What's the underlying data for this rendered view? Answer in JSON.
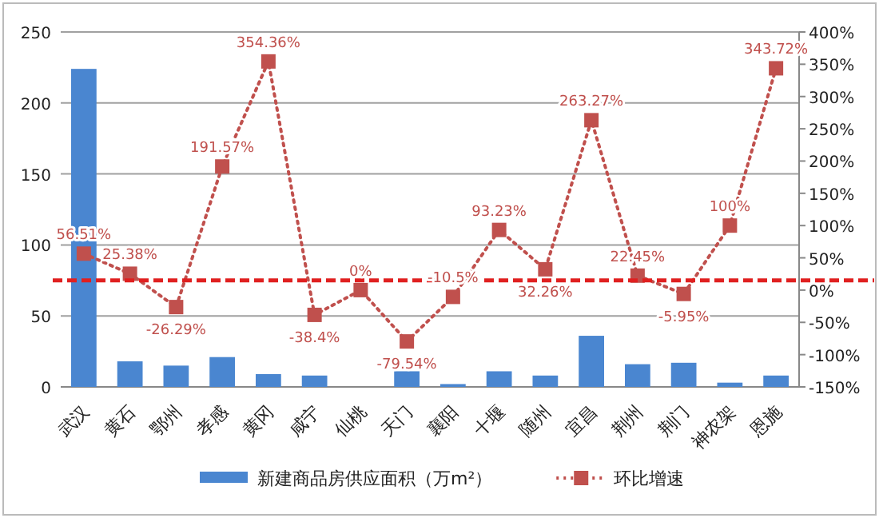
{
  "chart_data": {
    "type": "bar",
    "categories": [
      "武汉",
      "黄石",
      "鄂州",
      "孝感",
      "黄冈",
      "咸宁",
      "仙桃",
      "天门",
      "襄阳",
      "十堰",
      "随州",
      "宜昌",
      "荆州",
      "荆门",
      "神农架",
      "恩施"
    ],
    "series": [
      {
        "name": "新建商品房供应面积（万m²）",
        "color": "#4a86d0",
        "values": [
          224,
          18,
          15,
          21,
          9,
          8,
          0,
          11,
          2,
          11,
          8,
          36,
          16,
          17,
          3,
          8
        ]
      },
      {
        "name": "环比增速",
        "type": "line",
        "axis": "y2",
        "color": "#c0504d",
        "marker": "square",
        "line_style": "dotted",
        "values": [
          56.51,
          25.38,
          -26.29,
          191.57,
          354.36,
          -38.4,
          0,
          -79.54,
          -10.5,
          93.23,
          32.26,
          263.27,
          22.45,
          -5.95,
          100,
          343.72
        ],
        "value_labels": [
          "56.51%",
          "25.38%",
          "-26.29%",
          "191.57%",
          "354.36%",
          "-38.4%",
          "0%",
          "-79.54%",
          "-10.5%",
          "93.23%",
          "32.26%",
          "263.27%",
          "22.45%",
          "-5.95%",
          "100%",
          "343.72%"
        ]
      }
    ],
    "ylim": [
      0,
      250
    ],
    "yticks": [
      0,
      50,
      100,
      150,
      200,
      250
    ],
    "y2lim": [
      -150,
      400
    ],
    "y2ticks": [
      {
        "value": -150,
        "label": "-150%"
      },
      {
        "value": -100,
        "label": "-100%"
      },
      {
        "value": -50,
        "label": "-50%"
      },
      {
        "value": 0,
        "label": "0%"
      },
      {
        "value": 50,
        "label": "50%"
      },
      {
        "value": 100,
        "label": "100%"
      },
      {
        "value": 150,
        "label": "150%"
      },
      {
        "value": 200,
        "label": "200%"
      },
      {
        "value": 250,
        "label": "250%"
      },
      {
        "value": 300,
        "label": "300%"
      },
      {
        "value": 350,
        "label": "350%"
      },
      {
        "value": 400,
        "label": "400%"
      }
    ],
    "ref_lines": [
      {
        "axis": "y",
        "value": 75,
        "color": "#e02020",
        "line_style": "dashed"
      }
    ],
    "grid": "y",
    "legend": "bottom"
  }
}
